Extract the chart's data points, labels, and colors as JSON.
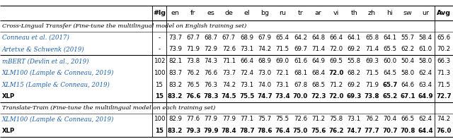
{
  "columns": [
    "#lg",
    "en",
    "fr",
    "es",
    "de",
    "el",
    "bg",
    "ru",
    "tr",
    "ar",
    "vi",
    "th",
    "zh",
    "hi",
    "sw",
    "ur",
    "Avg"
  ],
  "section1_label": "Cross-Lingual Transfer (Fine-tune the multilingual model on English training set)",
  "section2_label": "Translate-Train (Fine-tune the multilingual model on each training set)",
  "rows_s1_plain": [
    [
      "Conneau et al. (2017)",
      "-",
      "73.7",
      "67.7",
      "68.7",
      "67.7",
      "68.9",
      "67.9",
      "65.4",
      "64.2",
      "64.8",
      "66.4",
      "64.1",
      "65.8",
      "64.1",
      "55.7",
      "58.4",
      "65.6"
    ],
    [
      "Artetxe & Schwenk (2019)",
      "-",
      "73.9",
      "71.9",
      "72.9",
      "72.6",
      "73.1",
      "74.2",
      "71.5",
      "69.7",
      "71.4",
      "72.0",
      "69.2",
      "71.4",
      "65.5",
      "62.2",
      "61.0",
      "70.2"
    ]
  ],
  "rows_s1_group2": [
    [
      "mBERT (Devlin et al., 2019)",
      "102",
      "82.1",
      "73.8",
      "74.3",
      "71.1",
      "66.4",
      "68.9",
      "69.0",
      "61.6",
      "64.9",
      "69.5",
      "55.8",
      "69.3",
      "60.0",
      "50.4",
      "58.0",
      "66.3"
    ],
    [
      "XLM100 (Lample & Conneau, 2019)",
      "100",
      "83.7",
      "76.2",
      "76.6",
      "73.7",
      "72.4",
      "73.0",
      "72.1",
      "68.1",
      "68.4",
      "72.0",
      "68.2",
      "71.5",
      "64.5",
      "58.0",
      "62.4",
      "71.3"
    ],
    [
      "XLM15 (Lample & Conneau, 2019)",
      "15",
      "83.2",
      "76.5",
      "76.3",
      "74.2",
      "73.1",
      "74.0",
      "73.1",
      "67.8",
      "68.5",
      "71.2",
      "69.2",
      "71.9",
      "65.7",
      "64.6",
      "63.4",
      "71.5"
    ],
    [
      "XLP",
      "15",
      "83.2",
      "76.6",
      "78.3",
      "74.5",
      "75.5",
      "74.7",
      "73.4",
      "70.0",
      "72.3",
      "72.0",
      "69.3",
      "73.8",
      "65.2",
      "67.1",
      "64.9",
      "72.7"
    ]
  ],
  "rows_s1_group2_bold": [
    false,
    false,
    false,
    true
  ],
  "bold_cells_s1g2": {
    "1": [
      "72.0"
    ],
    "2": [
      "65.7"
    ]
  },
  "rows_s2": [
    [
      "XLM100 (Lample & Conneau, 2019)",
      "100",
      "82.9",
      "77.6",
      "77.9",
      "77.9",
      "77.1",
      "75.7",
      "75.5",
      "72.6",
      "71.2",
      "75.8",
      "73.1",
      "76.2",
      "70.4",
      "66.5",
      "62.4",
      "74.2"
    ],
    [
      "XLP",
      "15",
      "83.2",
      "79.3",
      "79.9",
      "78.4",
      "78.7",
      "78.6",
      "76.4",
      "75.0",
      "75.6",
      "76.2",
      "74.7",
      "77.7",
      "70.7",
      "70.8",
      "64.4",
      "76.0"
    ]
  ],
  "rows_s2_bold": [
    false,
    true
  ],
  "link_color": "#2060a8",
  "figsize": [
    6.4,
    1.97
  ],
  "dpi": 100
}
